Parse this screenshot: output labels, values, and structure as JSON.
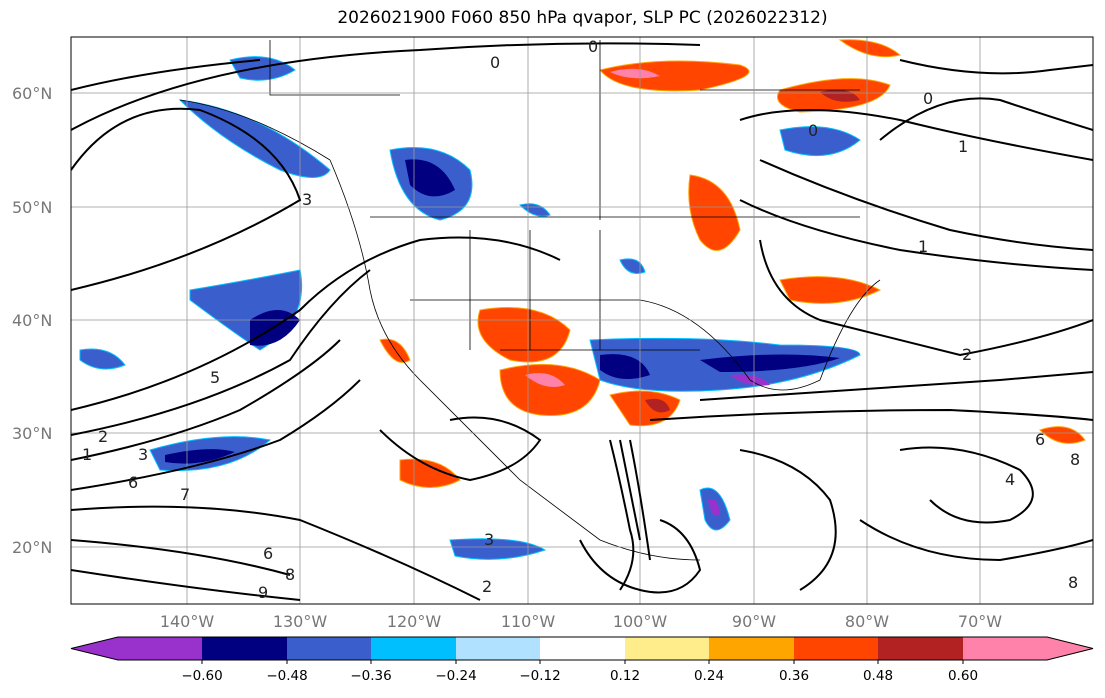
{
  "title": "2026021900 F060 850 hPa qvapor, SLP PC (2026022312)",
  "map": {
    "lat_labels": [
      "60°N",
      "50°N",
      "40°N",
      "30°N",
      "20°N"
    ],
    "lon_labels": [
      "140°W",
      "130°W",
      "120°W",
      "110°W",
      "100°W",
      "90°W",
      "80°W",
      "70°W"
    ],
    "contour_labels": [
      "0",
      "0",
      "0",
      "0",
      "1",
      "1",
      "1",
      "2",
      "2",
      "3",
      "3",
      "5",
      "6",
      "6",
      "7",
      "8",
      "8",
      "9",
      "2",
      "3",
      "4",
      "8",
      "6"
    ]
  },
  "colorbar": {
    "ticks": [
      "−0.60",
      "−0.48",
      "−0.36",
      "−0.24",
      "−0.12",
      "0.12",
      "0.24",
      "0.36",
      "0.48",
      "0.60"
    ],
    "colors": [
      "#9932cc",
      "#000080",
      "#3a5fcd",
      "#00bfff",
      "#b0e2ff",
      "#ffffff",
      "#ffec8b",
      "#ffa500",
      "#ff4500",
      "#b22222",
      "#ff82ab"
    ]
  }
}
